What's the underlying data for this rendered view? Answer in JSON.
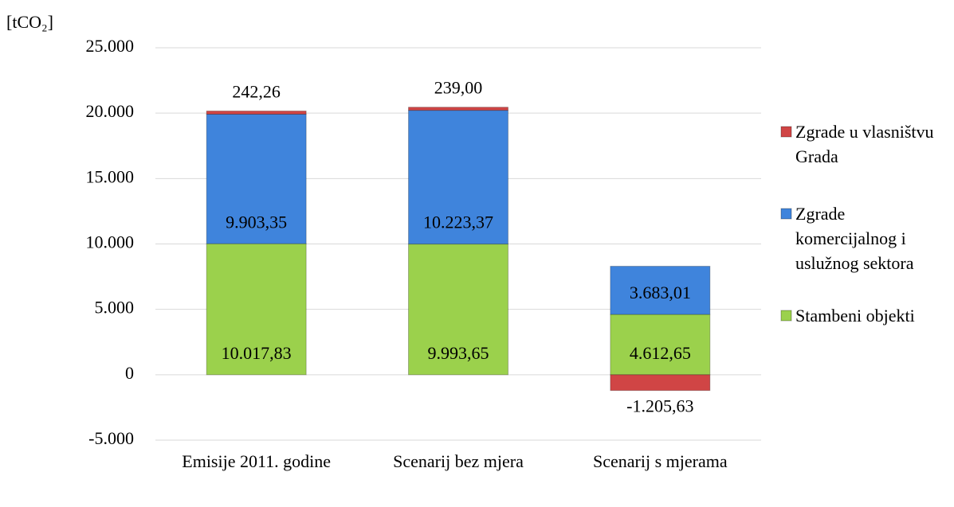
{
  "chart_data": {
    "type": "stacked_bar",
    "y_label": "[tCO₂]",
    "categories": [
      "Emisije 2011. godine",
      "Scenarij bez mjera",
      "Scenarij s mjerama"
    ],
    "series": [
      {
        "name": "Stambeni objekti",
        "color": "#9bd14c",
        "values": [
          10017.83,
          9993.65,
          4612.65
        ],
        "value_labels": [
          "10.017,83",
          "9.993,65",
          "4.612,65"
        ]
      },
      {
        "name": "Zgrade komercijalnog i uslužnog sektora",
        "color": "#3f84dc",
        "values": [
          9903.35,
          10223.37,
          3683.01
        ],
        "value_labels": [
          "9.903,35",
          "10.223,37",
          "3.683,01"
        ]
      },
      {
        "name": "Zgrade u vlasništvu Grada",
        "color": "#d04545",
        "values": [
          242.26,
          239.0,
          -1205.63
        ],
        "value_labels": [
          "242,26",
          "239,00",
          "-1.205,63"
        ]
      }
    ],
    "ylim": [
      -5000,
      25000
    ],
    "yticks": [
      {
        "value": -5000,
        "label": "-5.000"
      },
      0,
      {
        "value": 5000,
        "label": "5.000"
      },
      {
        "value": 10000,
        "label": "10.000"
      },
      {
        "value": 15000,
        "label": "15.000"
      },
      {
        "value": 20000,
        "label": "20.000"
      },
      {
        "value": 25000,
        "label": "25.000"
      }
    ],
    "grid": true,
    "legend": "right"
  }
}
